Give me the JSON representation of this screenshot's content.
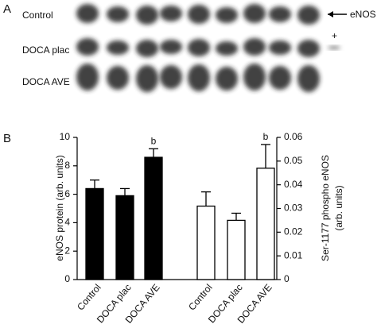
{
  "panel_a": {
    "label": "A",
    "rows": [
      "Control",
      "DOCA plac",
      "DOCA AVE"
    ],
    "band_label": "eNOS",
    "marker": "+"
  },
  "chart_data": {
    "type": "bar",
    "panel_label": "B",
    "categories": [
      "Control",
      "DOCA plac",
      "DOCA AVE"
    ],
    "ylabel": "eNOS protein (arb. units)",
    "y2label": [
      "Ser-1177 phospho eNOS",
      "(arb. units)"
    ],
    "ylim": [
      0,
      10
    ],
    "yticks": [
      0,
      2,
      4,
      6,
      8,
      10
    ],
    "y2lim": [
      0,
      0.06
    ],
    "y2ticks": [
      0,
      0.01,
      0.02,
      0.03,
      0.04,
      0.05,
      0.06
    ],
    "series": [
      {
        "color": "#000000",
        "values": [
          6.4,
          5.9,
          8.6
        ],
        "errors": [
          0.6,
          0.5,
          0.6
        ],
        "annotations": [
          null,
          null,
          "b"
        ]
      },
      {
        "color": "#ffffff",
        "axis": "y2",
        "values": [
          0.031,
          0.025,
          0.047
        ],
        "errors": [
          0.006,
          0.003,
          0.01
        ],
        "annotations": [
          null,
          null,
          "b"
        ]
      }
    ]
  }
}
